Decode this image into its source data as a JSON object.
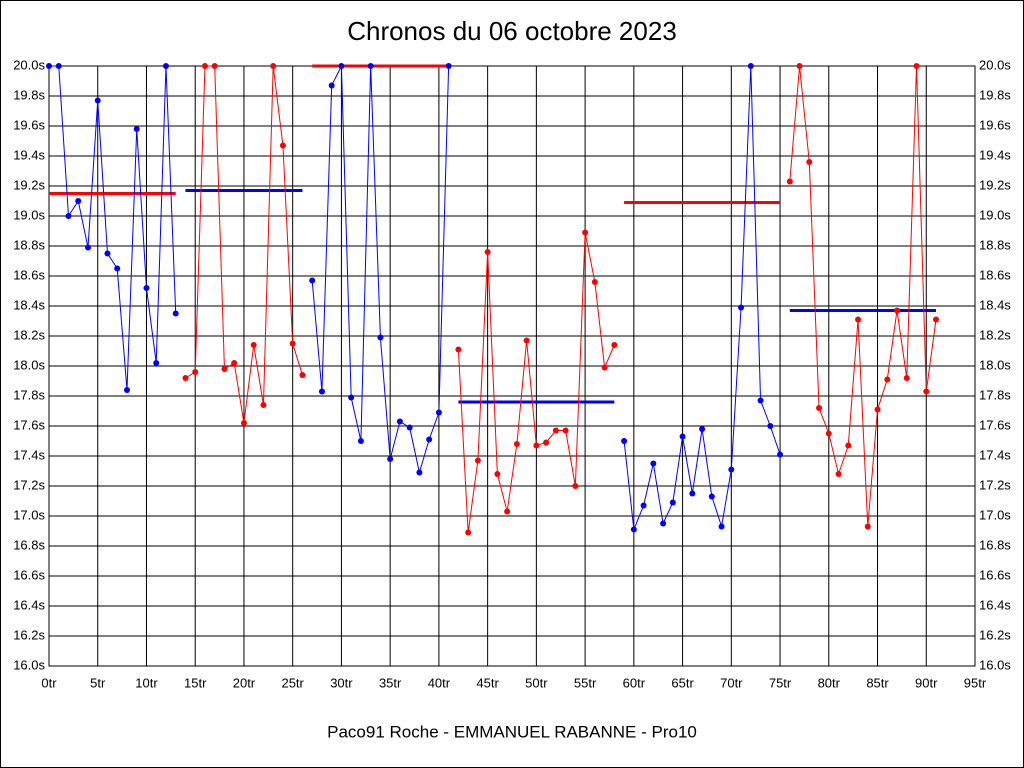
{
  "chart_data": {
    "type": "line",
    "title": "Chronos du 06 octobre 2023",
    "xlabel": "Paco91 Roche - EMMANUEL RABANNE - Pro10",
    "grid": true,
    "xlim": [
      0,
      95
    ],
    "ylim": [
      16,
      20
    ],
    "xticks": [
      {
        "value": 0,
        "label": "0tr"
      },
      {
        "value": 5,
        "label": "5tr"
      },
      {
        "value": 10,
        "label": "10tr"
      },
      {
        "value": 15,
        "label": "15tr"
      },
      {
        "value": 20,
        "label": "20tr"
      },
      {
        "value": 25,
        "label": "25tr"
      },
      {
        "value": 30,
        "label": "30tr"
      },
      {
        "value": 35,
        "label": "35tr"
      },
      {
        "value": 40,
        "label": "40tr"
      },
      {
        "value": 45,
        "label": "45tr"
      },
      {
        "value": 50,
        "label": "50tr"
      },
      {
        "value": 55,
        "label": "55tr"
      },
      {
        "value": 60,
        "label": "60tr"
      },
      {
        "value": 65,
        "label": "65tr"
      },
      {
        "value": 70,
        "label": "70tr"
      },
      {
        "value": 75,
        "label": "75tr"
      },
      {
        "value": 80,
        "label": "80tr"
      },
      {
        "value": 85,
        "label": "85tr"
      },
      {
        "value": 90,
        "label": "90tr"
      },
      {
        "value": 95,
        "label": "95tr"
      }
    ],
    "yticks": [
      {
        "value": 16.0,
        "label": "16.0s"
      },
      {
        "value": 16.2,
        "label": "16.2s"
      },
      {
        "value": 16.4,
        "label": "16.4s"
      },
      {
        "value": 16.6,
        "label": "16.6s"
      },
      {
        "value": 16.8,
        "label": "16.8s"
      },
      {
        "value": 17.0,
        "label": "17.0s"
      },
      {
        "value": 17.2,
        "label": "17.2s"
      },
      {
        "value": 17.4,
        "label": "17.4s"
      },
      {
        "value": 17.6,
        "label": "17.6s"
      },
      {
        "value": 17.8,
        "label": "17.8s"
      },
      {
        "value": 18.0,
        "label": "18.0s"
      },
      {
        "value": 18.2,
        "label": "18.2s"
      },
      {
        "value": 18.4,
        "label": "18.4s"
      },
      {
        "value": 18.6,
        "label": "18.6s"
      },
      {
        "value": 18.8,
        "label": "18.8s"
      },
      {
        "value": 19.0,
        "label": "19.0s"
      },
      {
        "value": 19.2,
        "label": "19.2s"
      },
      {
        "value": 19.4,
        "label": "19.4s"
      },
      {
        "value": 19.6,
        "label": "19.6s"
      },
      {
        "value": 19.8,
        "label": "19.8s"
      },
      {
        "value": 20.0,
        "label": "20.0s"
      }
    ],
    "series": [
      {
        "color": "#0000ff",
        "x": [
          0,
          1,
          2,
          3,
          4,
          5,
          6,
          7,
          8,
          9,
          10,
          11,
          12,
          13
        ],
        "values": [
          20.0,
          20.0,
          19.0,
          19.1,
          18.79,
          19.77,
          18.75,
          18.65,
          17.84,
          19.58,
          18.52,
          18.02,
          20.0,
          18.35
        ]
      },
      {
        "color": "#ff0000",
        "x": [
          14,
          15,
          16,
          17,
          18,
          19,
          20,
          21,
          22,
          23,
          24,
          25,
          26
        ],
        "values": [
          17.92,
          17.96,
          20.0,
          20.0,
          17.98,
          18.02,
          17.62,
          18.14,
          17.74,
          20.0,
          19.47,
          18.15,
          17.94
        ]
      },
      {
        "color": "#0000ff",
        "x": [
          27,
          28,
          29,
          30,
          31,
          32,
          33,
          34,
          35,
          36,
          37,
          38,
          39,
          40,
          41
        ],
        "values": [
          18.57,
          17.83,
          19.87,
          20.0,
          17.79,
          17.5,
          20.0,
          18.19,
          17.38,
          17.63,
          17.59,
          17.29,
          17.51,
          17.69,
          20.0
        ]
      },
      {
        "color": "#ff0000",
        "x": [
          42,
          43,
          44,
          45,
          46,
          47,
          48,
          49,
          50,
          51,
          52,
          53,
          54,
          55,
          56,
          57,
          58
        ],
        "values": [
          18.11,
          16.89,
          17.37,
          18.76,
          17.28,
          17.03,
          17.48,
          18.17,
          17.47,
          17.49,
          17.57,
          17.57,
          17.2,
          18.89,
          18.56,
          17.99,
          18.14
        ]
      },
      {
        "color": "#0000ff",
        "x": [
          59,
          60,
          61,
          62,
          63,
          64,
          65,
          66,
          67,
          68,
          69,
          70,
          71,
          72,
          73,
          74,
          75
        ],
        "values": [
          17.5,
          16.91,
          17.07,
          17.35,
          16.95,
          17.09,
          17.53,
          17.15,
          17.58,
          17.13,
          16.93,
          17.31,
          18.39,
          20.0,
          17.77,
          17.6,
          17.41
        ]
      },
      {
        "color": "#ff0000",
        "x": [
          76,
          77,
          78,
          79,
          80,
          81,
          82,
          83,
          84,
          85,
          86,
          87,
          88,
          89,
          90,
          91
        ],
        "values": [
          19.23,
          20.0,
          19.36,
          17.72,
          17.55,
          17.28,
          17.47,
          18.31,
          16.93,
          17.71,
          17.91,
          18.37,
          17.92,
          20.0,
          17.83,
          18.31
        ]
      }
    ],
    "averages": [
      {
        "color": "#ff0000",
        "xrange": [
          0,
          13
        ],
        "value": 19.15
      },
      {
        "color": "#0000ff",
        "xrange": [
          14,
          26
        ],
        "value": 19.17
      },
      {
        "color": "#ff0000",
        "xrange": [
          27,
          41
        ],
        "value": 20.0
      },
      {
        "color": "#0000ff",
        "xrange": [
          42,
          58
        ],
        "value": 17.76
      },
      {
        "color": "#ff0000",
        "xrange": [
          59,
          75
        ],
        "value": 19.09
      },
      {
        "color": "#0000ff",
        "xrange": [
          76,
          91
        ],
        "value": 18.37
      }
    ]
  }
}
